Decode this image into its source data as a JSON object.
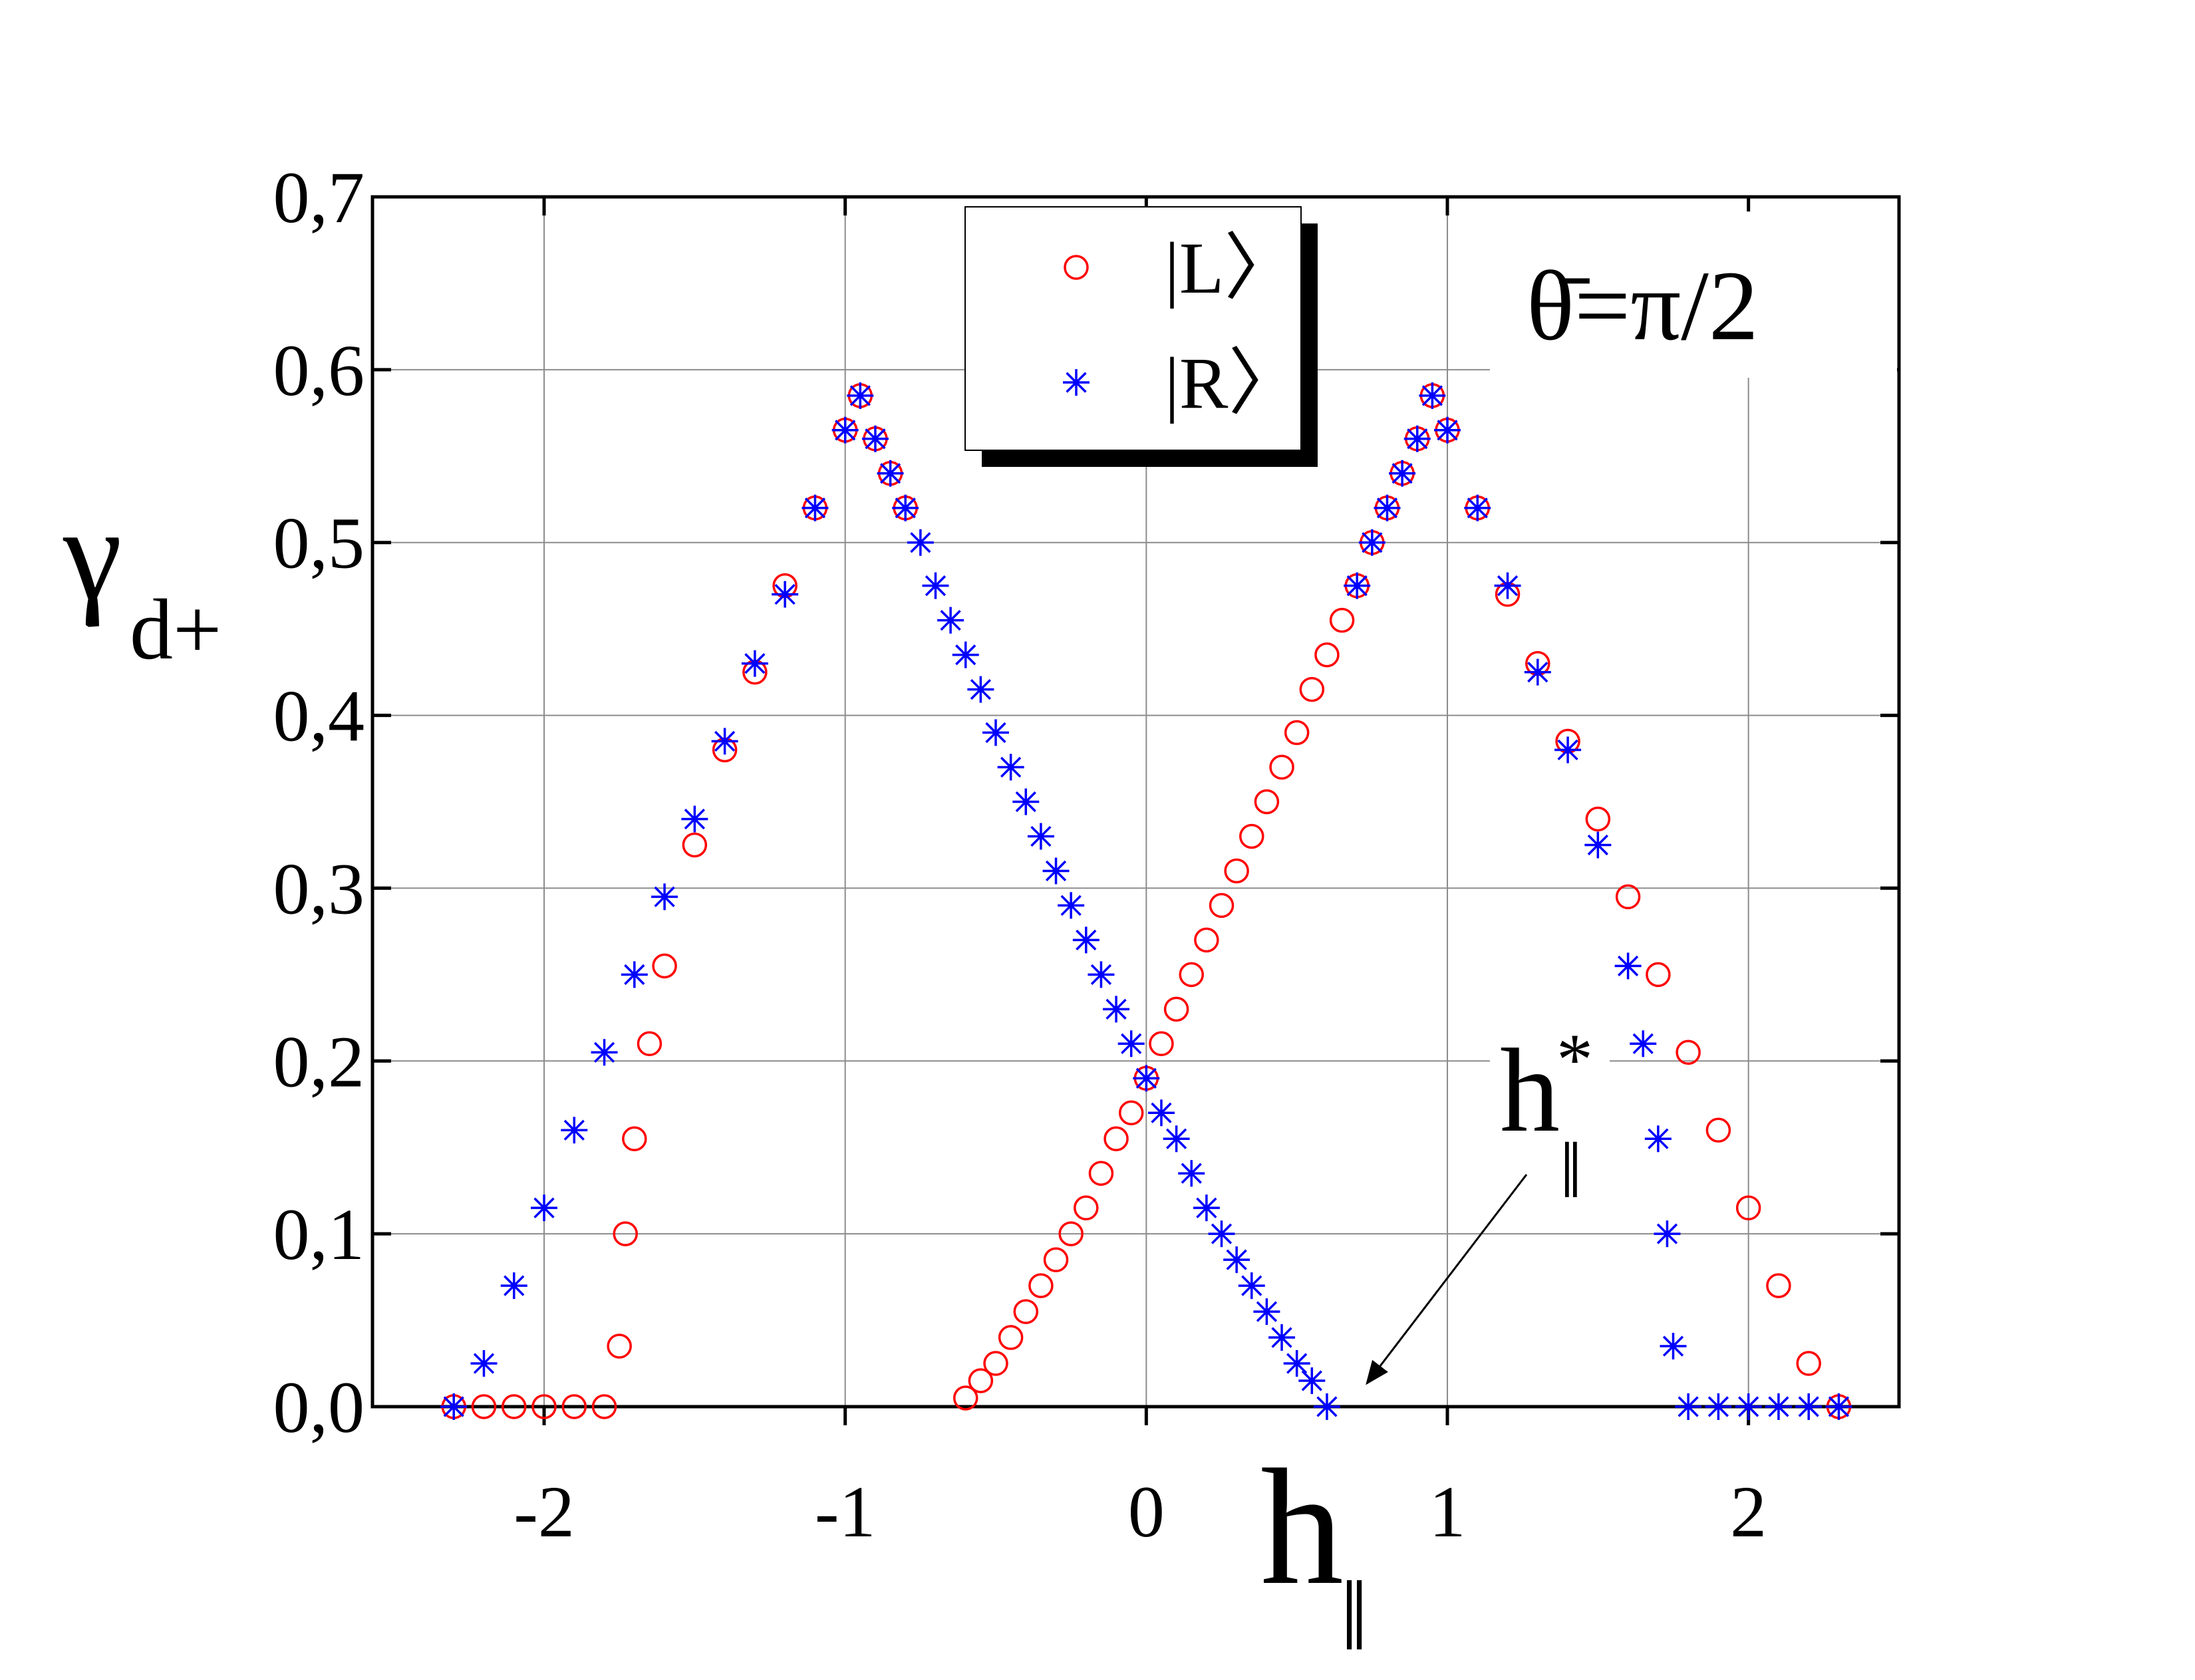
{
  "chart_data": {
    "type": "scatter",
    "y_label": "γ",
    "y_label_sub": "d+",
    "x_label": "h",
    "x_label_sub": "‖",
    "annotation": "θ̄=π/2",
    "point_label": "h",
    "point_label_sup": "*",
    "point_label_sub": "‖",
    "xlim": [
      -2.57,
      2.5
    ],
    "ylim": [
      0,
      0.7
    ],
    "xticks": [
      -2,
      -1,
      0,
      1,
      2
    ],
    "yticks": [
      {
        "value": 0,
        "label": "0,0"
      },
      {
        "value": 0.1,
        "label": "0,1"
      },
      {
        "value": 0.2,
        "label": "0,2"
      },
      {
        "value": 0.3,
        "label": "0,3"
      },
      {
        "value": 0.4,
        "label": "0,4"
      },
      {
        "value": 0.5,
        "label": "0,5"
      },
      {
        "value": 0.6,
        "label": "0,6"
      },
      {
        "value": 0.7,
        "label": "0,7"
      }
    ],
    "grid": true,
    "series": [
      {
        "name": "|L〉",
        "color": "#ff0000",
        "marker": "circle",
        "x": [
          -2.3,
          -2.2,
          -2.1,
          -2.0,
          -1.9,
          -1.8,
          -1.75,
          -1.73,
          -1.7,
          -1.65,
          -1.6,
          -1.5,
          -1.4,
          -1.3,
          -1.2,
          -1.1,
          -1.0,
          -0.95,
          -0.9,
          -0.85,
          -0.8,
          -0.6,
          -0.55,
          -0.5,
          -0.45,
          -0.4,
          -0.35,
          -0.3,
          -0.25,
          -0.2,
          -0.15,
          -0.1,
          -0.05,
          0,
          0.05,
          0.1,
          0.15,
          0.2,
          0.25,
          0.3,
          0.35,
          0.4,
          0.45,
          0.5,
          0.55,
          0.6,
          0.65,
          0.7,
          0.75,
          0.8,
          0.85,
          0.9,
          0.95,
          1.0,
          1.1,
          1.2,
          1.3,
          1.4,
          1.5,
          1.6,
          1.7,
          1.8,
          1.9,
          2.0,
          2.1,
          2.2,
          2.3
        ],
        "values": [
          0,
          0,
          0,
          0,
          0,
          0,
          0.035,
          0.1,
          0.155,
          0.21,
          0.255,
          0.325,
          0.38,
          0.425,
          0.475,
          0.52,
          0.565,
          0.585,
          0.56,
          0.54,
          0.52,
          0.005,
          0.015,
          0.025,
          0.04,
          0.055,
          0.07,
          0.085,
          0.1,
          0.115,
          0.135,
          0.155,
          0.17,
          0.19,
          0.21,
          0.23,
          0.25,
          0.27,
          0.29,
          0.31,
          0.33,
          0.35,
          0.37,
          0.39,
          0.415,
          0.435,
          0.455,
          0.475,
          0.5,
          0.52,
          0.54,
          0.56,
          0.585,
          0.565,
          0.52,
          0.47,
          0.43,
          0.385,
          0.34,
          0.295,
          0.25,
          0.205,
          0.16,
          0.115,
          0.07,
          0.025,
          0
        ]
      },
      {
        "name": "|R〉",
        "color": "#0000ff",
        "marker": "star",
        "x": [
          -2.3,
          -2.2,
          -2.1,
          -2.0,
          -1.9,
          -1.8,
          -1.7,
          -1.6,
          -1.5,
          -1.4,
          -1.3,
          -1.2,
          -1.1,
          -1.0,
          -0.95,
          -0.9,
          -0.85,
          -0.8,
          -0.75,
          -0.7,
          -0.65,
          -0.6,
          -0.55,
          -0.5,
          -0.45,
          -0.4,
          -0.35,
          -0.3,
          -0.25,
          -0.2,
          -0.15,
          -0.1,
          -0.05,
          0,
          0.05,
          0.1,
          0.15,
          0.2,
          0.25,
          0.3,
          0.35,
          0.4,
          0.45,
          0.5,
          0.55,
          0.6,
          0.7,
          0.75,
          0.8,
          0.85,
          0.9,
          0.95,
          1.0,
          1.1,
          1.2,
          1.3,
          1.4,
          1.5,
          1.6,
          1.65,
          1.7,
          1.73,
          1.75,
          1.8,
          1.9,
          2.0,
          2.1,
          2.2,
          2.3
        ],
        "values": [
          0,
          0.025,
          0.07,
          0.115,
          0.16,
          0.205,
          0.25,
          0.295,
          0.34,
          0.385,
          0.43,
          0.47,
          0.52,
          0.565,
          0.585,
          0.56,
          0.54,
          0.52,
          0.5,
          0.475,
          0.455,
          0.435,
          0.415,
          0.39,
          0.37,
          0.35,
          0.33,
          0.31,
          0.29,
          0.27,
          0.25,
          0.23,
          0.21,
          0.19,
          0.17,
          0.155,
          0.135,
          0.115,
          0.1,
          0.085,
          0.07,
          0.055,
          0.04,
          0.025,
          0.015,
          0,
          0.475,
          0.5,
          0.52,
          0.54,
          0.56,
          0.585,
          0.565,
          0.52,
          0.475,
          0.425,
          0.38,
          0.325,
          0.255,
          0.21,
          0.155,
          0.1,
          0.035,
          0,
          0,
          0,
          0,
          0,
          0
        ]
      }
    ]
  }
}
